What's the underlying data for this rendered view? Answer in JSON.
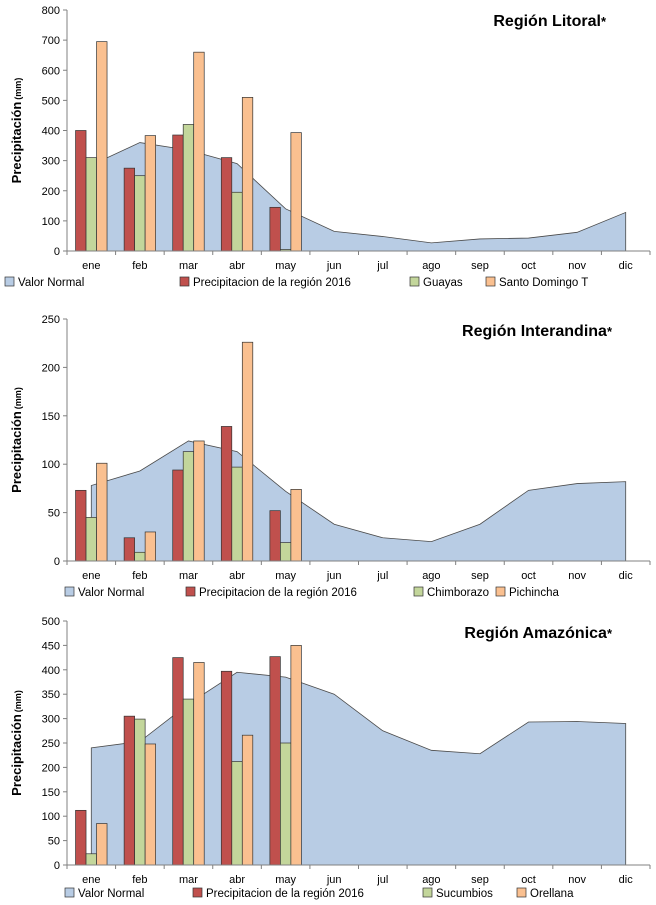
{
  "chart_data": [
    {
      "type": "bar",
      "title": "Región Litoral",
      "title_marker": "*",
      "ylabel": "Precipitación",
      "ylabel_unit": "(mm)",
      "ylim": [
        0,
        800
      ],
      "yticks": [
        0,
        100,
        200,
        300,
        400,
        500,
        600,
        700,
        800
      ],
      "categories": [
        "ene",
        "feb",
        "mar",
        "abr",
        "may",
        "jun",
        "jul",
        "ago",
        "sep",
        "oct",
        "nov",
        "dic"
      ],
      "area_series": {
        "name": "Valor Normal",
        "color": "#b8cce4",
        "values": [
          285,
          360,
          335,
          290,
          140,
          65,
          48,
          27,
          40,
          43,
          62,
          128
        ]
      },
      "series": [
        {
          "name": "Precipitacion de la región 2016",
          "color": "#c0504d",
          "values": [
            400,
            275,
            385,
            310,
            145,
            null,
            null,
            null,
            null,
            null,
            null,
            null
          ]
        },
        {
          "name": "Guayas",
          "color": "#c3d69b",
          "values": [
            310,
            250,
            420,
            195,
            5,
            null,
            null,
            null,
            null,
            null,
            null,
            null
          ]
        },
        {
          "name": "Santo Domingo T",
          "color": "#fac090",
          "values": [
            695,
            383,
            660,
            510,
            393,
            null,
            null,
            null,
            null,
            null,
            null,
            null
          ]
        }
      ],
      "legend_position": "bottom",
      "grid": false
    },
    {
      "type": "bar",
      "title": "Región Interandina",
      "title_marker": "*",
      "ylabel": "Precipitación",
      "ylabel_unit": "(mm)",
      "ylim": [
        0,
        250
      ],
      "yticks": [
        0,
        50,
        100,
        150,
        200,
        250
      ],
      "categories": [
        "ene",
        "feb",
        "mar",
        "abr",
        "may",
        "jun",
        "jul",
        "ago",
        "sep",
        "oct",
        "nov",
        "dic"
      ],
      "area_series": {
        "name": "Valor Normal",
        "color": "#b8cce4",
        "values": [
          78,
          93,
          124,
          113,
          72,
          38,
          24,
          20,
          38,
          73,
          80,
          82
        ]
      },
      "series": [
        {
          "name": "Precipitacion de la región 2016",
          "color": "#c0504d",
          "values": [
            73,
            24,
            94,
            139,
            52,
            null,
            null,
            null,
            null,
            null,
            null,
            null
          ]
        },
        {
          "name": "Chimborazo",
          "color": "#c3d69b",
          "values": [
            45,
            9,
            113,
            97,
            19,
            null,
            null,
            null,
            null,
            null,
            null,
            null
          ]
        },
        {
          "name": "Pichincha",
          "color": "#fac090",
          "values": [
            101,
            30,
            124,
            226,
            74,
            null,
            null,
            null,
            null,
            null,
            null,
            null
          ]
        }
      ],
      "legend_position": "bottom",
      "grid": false
    },
    {
      "type": "bar",
      "title": "Región Amazónica",
      "title_marker": "*",
      "ylabel": "Precipitación",
      "ylabel_unit": "(mm)",
      "ylim": [
        0,
        500
      ],
      "yticks": [
        0,
        50,
        100,
        150,
        200,
        250,
        300,
        350,
        400,
        450,
        500
      ],
      "categories": [
        "ene",
        "feb",
        "mar",
        "abr",
        "may",
        "jun",
        "jul",
        "ago",
        "sep",
        "oct",
        "nov",
        "dic"
      ],
      "area_series": {
        "name": "Valor Normal",
        "color": "#b8cce4",
        "values": [
          240,
          253,
          330,
          395,
          385,
          350,
          275,
          235,
          228,
          293,
          294,
          290
        ]
      },
      "series": [
        {
          "name": "Precipitacion de la región 2016",
          "color": "#c0504d",
          "values": [
            112,
            305,
            425,
            397,
            427,
            null,
            null,
            null,
            null,
            null,
            null,
            null
          ]
        },
        {
          "name": "Sucumbios",
          "color": "#c3d69b",
          "values": [
            23,
            299,
            340,
            212,
            250,
            null,
            null,
            null,
            null,
            null,
            null,
            null
          ]
        },
        {
          "name": "Orellana",
          "color": "#fac090",
          "values": [
            85,
            248,
            415,
            266,
            450,
            null,
            null,
            null,
            null,
            null,
            null,
            null
          ]
        }
      ],
      "legend_position": "bottom",
      "grid": false
    }
  ]
}
